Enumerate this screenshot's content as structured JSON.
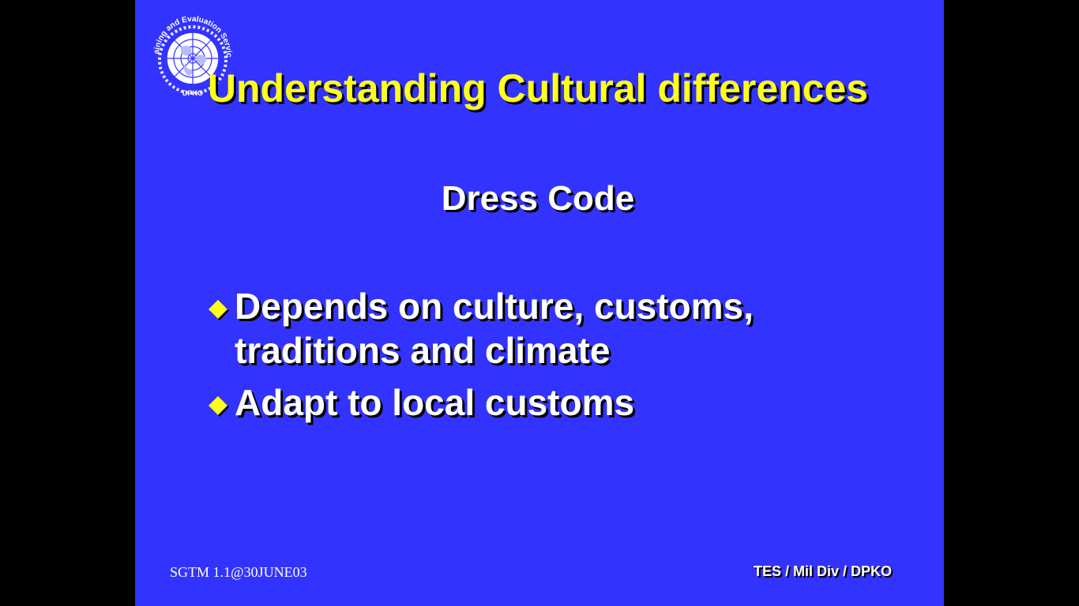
{
  "slide": {
    "background_color": "#3333ff",
    "logo": {
      "icon": "un-emblem-icon",
      "arc_text": "Training and Evaluation Service",
      "bottom_text": "DPKO"
    },
    "title": "Understanding Cultural differences",
    "subtitle": "Dress Code",
    "bullets": [
      {
        "icon": "yellow-diamond-bullet-icon",
        "text": "Depends on culture, customs, traditions and climate"
      },
      {
        "icon": "yellow-diamond-bullet-icon",
        "text": "Adapt to local customs"
      }
    ],
    "footer": {
      "left": "SGTM 1.1@30JUNE03",
      "right": "TES / Mil Div / DPKO"
    },
    "colors": {
      "title": "#ffff1a",
      "text": "#ffffff",
      "bullet": "#ffff1a"
    }
  }
}
